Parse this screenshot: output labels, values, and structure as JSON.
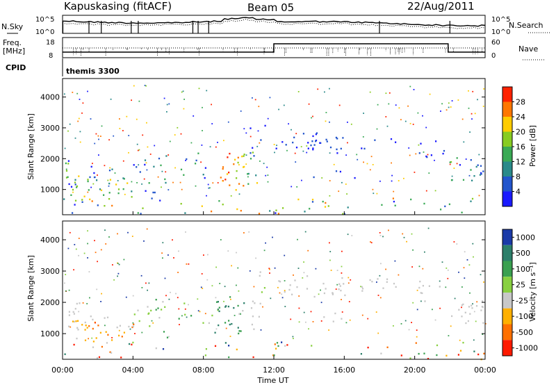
{
  "header": {
    "station": "Kapuskasing (fitACF)",
    "beam": "Beam 05",
    "date": "22/Aug/2011"
  },
  "top_panels": {
    "nsky_label": "N.Sky",
    "nsearch_label": "N.Search",
    "freq_label_line1": "Freq.",
    "freq_label_line2": "[MHz]",
    "nave_label": "Nave",
    "cpid_label": "CPID",
    "cpid_name": "themis 3300",
    "noise_ticks": [
      "10^5",
      "10^0"
    ],
    "freq_ticks": [
      "18",
      "8"
    ],
    "nave_ticks": [
      "60",
      "0"
    ]
  },
  "chart_data": [
    {
      "type": "heatmap",
      "name": "power",
      "ylabel": "Slant Range [km]",
      "ylim": [
        180,
        4600
      ],
      "yticks": [
        "1000",
        "2000",
        "3000",
        "4000"
      ],
      "colorbar_label": "Power [dB]",
      "colorbar_ticks": [
        "4",
        "8",
        "12",
        "16",
        "20",
        "24",
        "28"
      ],
      "colors": [
        "#1a1aff",
        "#2255cc",
        "#2a8a8a",
        "#3aaa55",
        "#88cc22",
        "#ffcc00",
        "#ff7700",
        "#ff2200"
      ]
    },
    {
      "type": "heatmap",
      "name": "velocity",
      "ylabel": "Slant Range [km]",
      "ylim": [
        180,
        4600
      ],
      "yticks": [
        "1000",
        "2000",
        "3000",
        "4000"
      ],
      "xlabel": "Time UT",
      "xticks": [
        "00:00",
        "04:00",
        "08:00",
        "12:00",
        "16:00",
        "20:00",
        "00:00"
      ],
      "colorbar_label": "Velocity [m s⁻¹]",
      "colorbar_ticks": [
        "1000",
        "500",
        "100",
        "25",
        "-25",
        "-100",
        "-500",
        "-1000"
      ],
      "colors": [
        "#1a3aa8",
        "#2c7f6a",
        "#3aa050",
        "#88d040",
        "#c8c8c8",
        "#ffb000",
        "#ff7000",
        "#ff1a00"
      ]
    }
  ]
}
